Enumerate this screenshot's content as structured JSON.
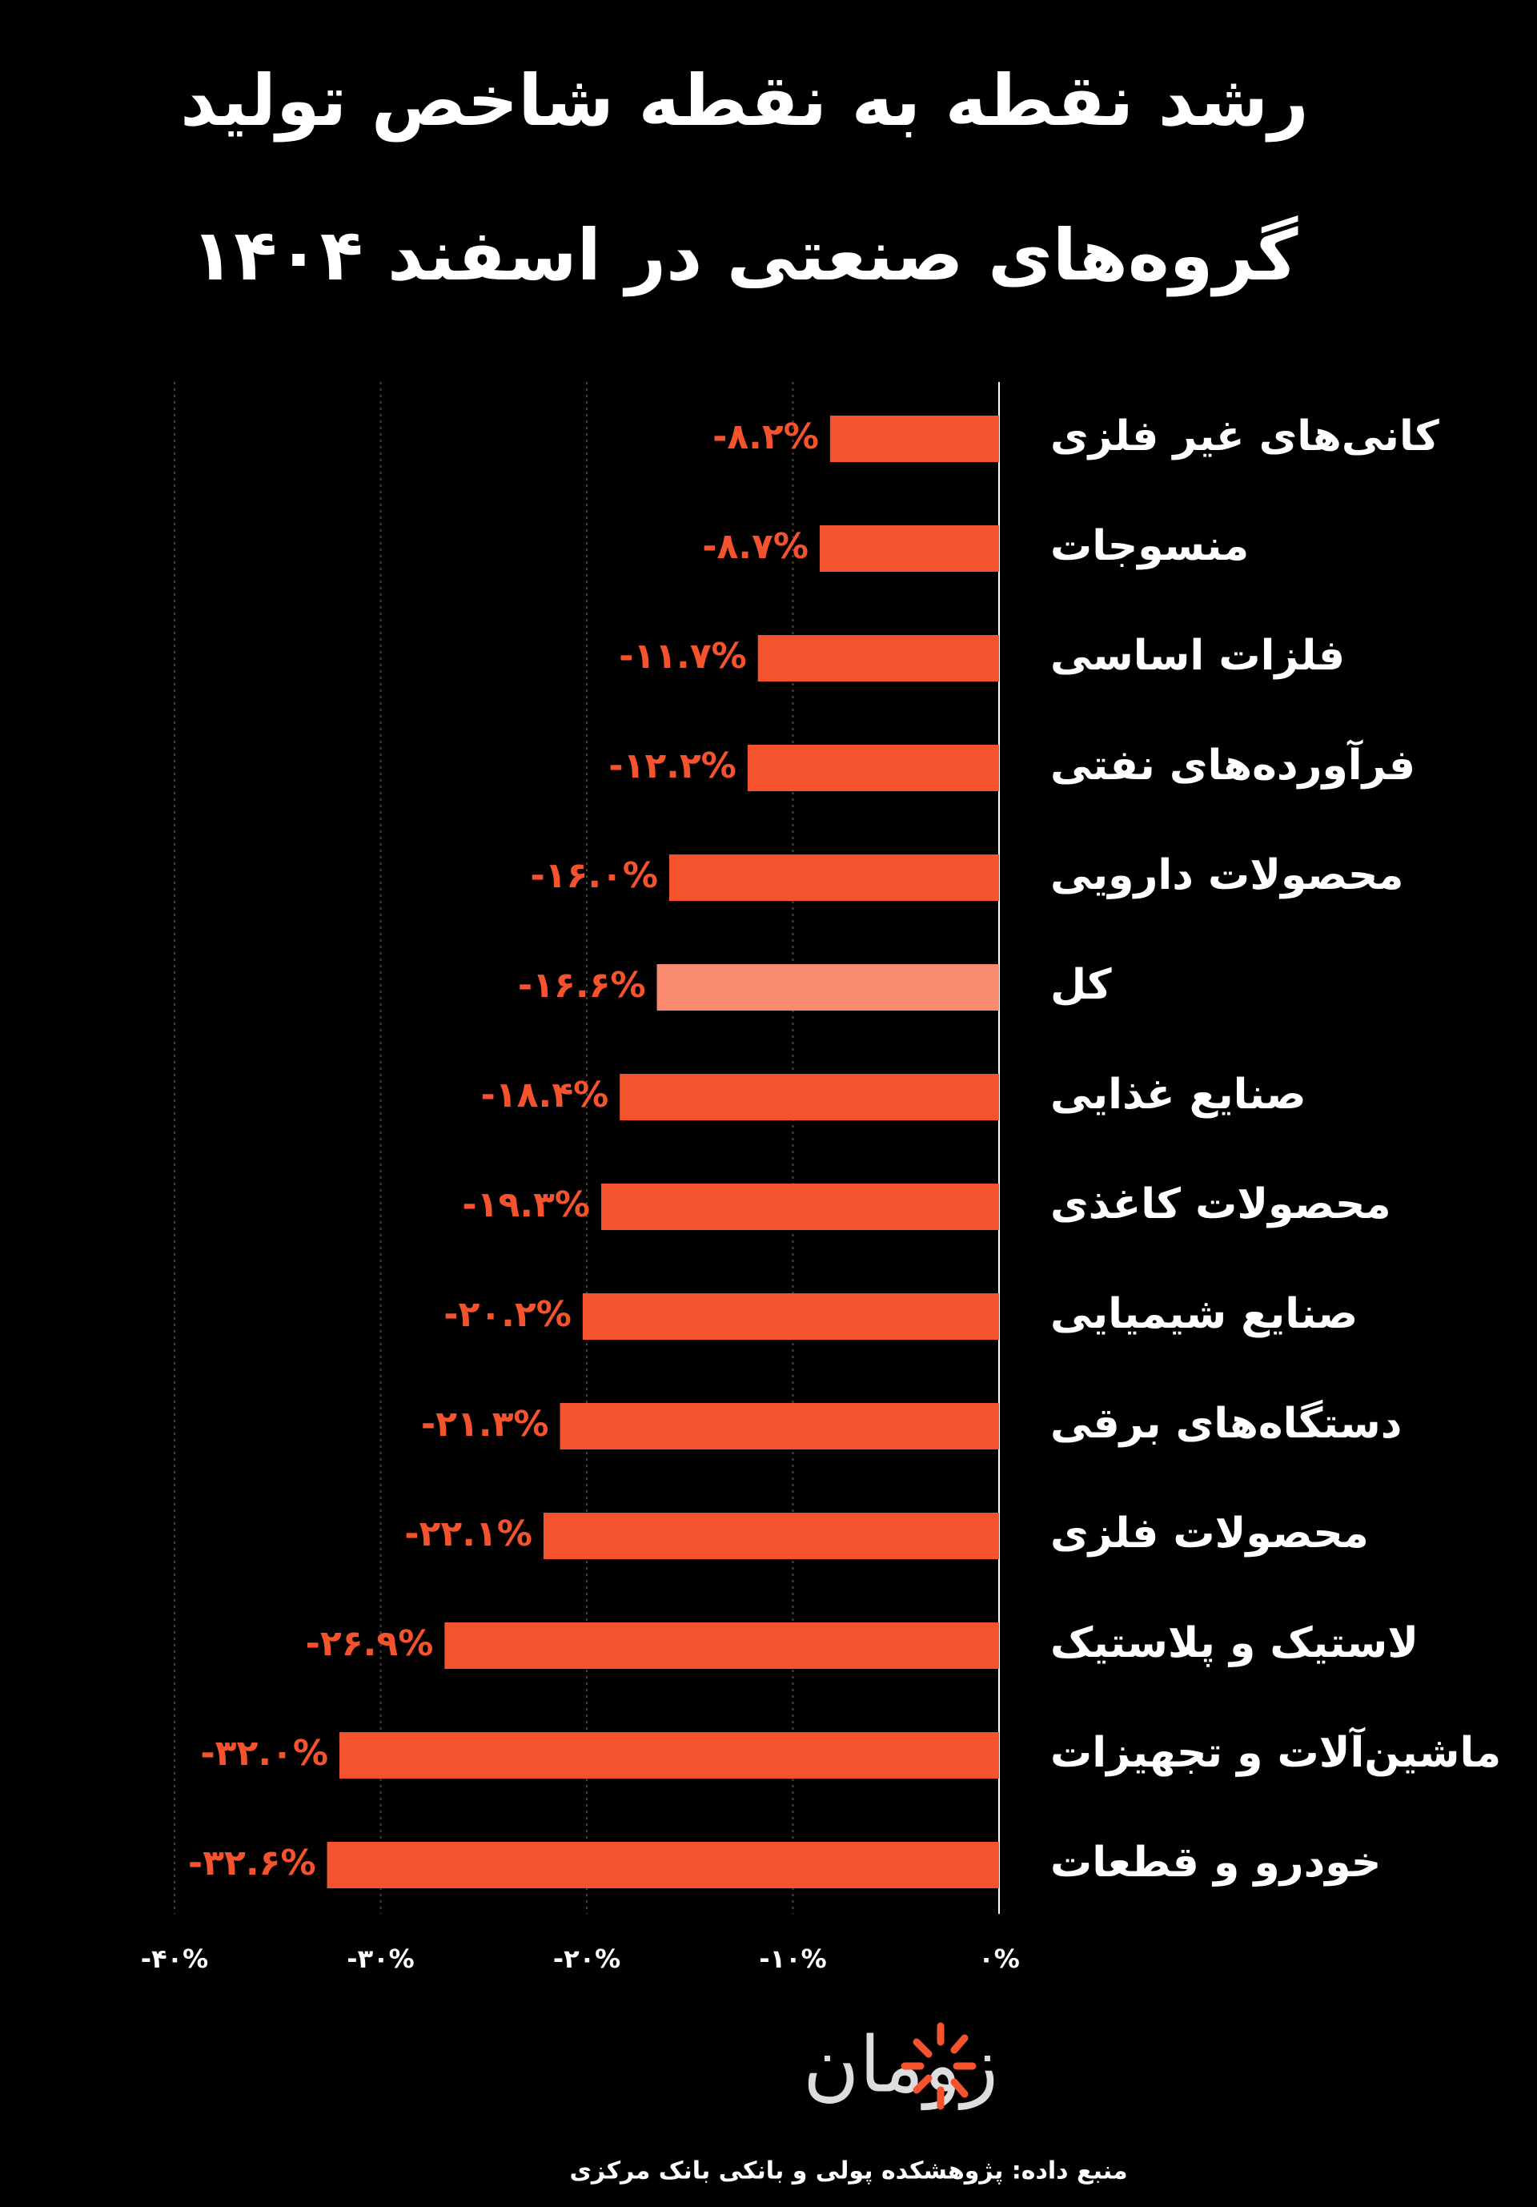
{
  "chart_data": {
    "type": "barh",
    "title": [
      "رشد نقطه به نقطه شاخص تولید",
      "گروه‌های صنعتی در اسفند ۱۴۰۴"
    ],
    "categories": [
      "کانی‌های غیر فلزی",
      "منسوجات",
      "فلزات اساسی",
      "فرآورده‌های نفتی",
      "محصولات دارویی",
      "کل",
      "صنایع غذایی",
      "محصولات کاغذی",
      "صنایع شیمیایی",
      "دستگاه‌های برقی",
      "محصولات فلزی",
      "لاستیک و پلاستیک",
      "ماشین‌آلات و تجهیزات",
      "خودرو و قطعات"
    ],
    "values": [
      -8.2,
      -8.7,
      -11.7,
      -12.2,
      -16.0,
      -16.6,
      -18.4,
      -19.3,
      -20.2,
      -21.3,
      -22.1,
      -26.9,
      -32.0,
      -32.6
    ],
    "value_labels": [
      "-۸.۲%",
      "-۸.۷%",
      "-۱۱.۷%",
      "-۱۲.۲%",
      "-۱۶.۰%",
      "-۱۶.۶%",
      "-۱۸.۴%",
      "-۱۹.۳%",
      "-۲۰.۲%",
      "-۲۱.۳%",
      "-۲۲.۱%",
      "-۲۶.۹%",
      "-۳۲.۰%",
      "-۳۲.۶%"
    ],
    "colors": [
      "#f4532d",
      "#f4532d",
      "#f4532d",
      "#f4532d",
      "#f4532d",
      "#f98a6f",
      "#f4532d",
      "#f4532d",
      "#f4532d",
      "#f4532d",
      "#f4532d",
      "#f4532d",
      "#f4532d",
      "#f4532d"
    ],
    "xlim": [
      -40,
      0
    ],
    "xticks": [
      {
        "value": -40,
        "label": "-۴۰%"
      },
      {
        "value": -30,
        "label": "-۳۰%"
      },
      {
        "value": -20,
        "label": "-۲۰%"
      },
      {
        "value": -10,
        "label": "-۱۰%"
      },
      {
        "value": 0,
        "label": "۰%"
      }
    ],
    "grid": true,
    "logo": "زومان",
    "source": "منبع داده: پژوهشکده پولی و بانکی بانک مرکزی"
  }
}
